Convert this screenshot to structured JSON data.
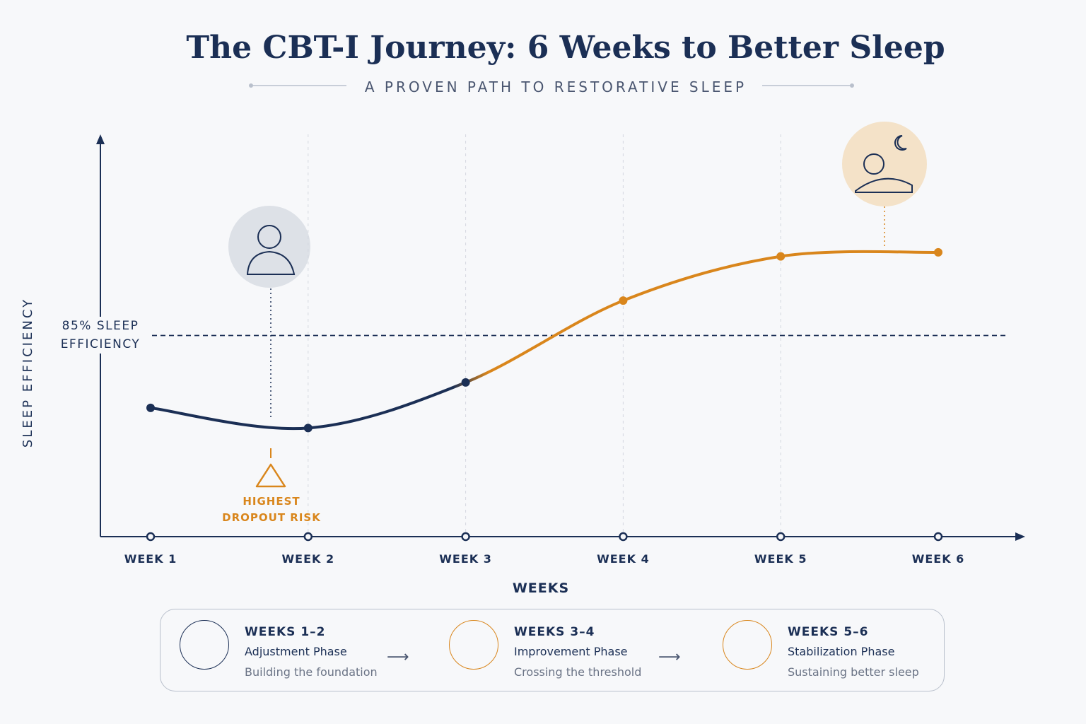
{
  "chart_data": {
    "type": "line",
    "title": "The CBT-I Journey: 6 Weeks to Better Sleep",
    "subtitle": "A PROVEN PATH TO RESTORATIVE SLEEP",
    "x_label": "WEEKS",
    "y_label": "SLEEP EFFICIENCY",
    "categories": [
      "WEEK 1",
      "WEEK 2",
      "WEEK 3",
      "WEEK 4",
      "WEEK 5",
      "WEEK 6"
    ],
    "series": [
      {
        "color": "#1b2f55",
        "values": [
          79.6,
          78.1,
          81.5,
          87.6,
          90.9,
          91.2
        ]
      }
    ],
    "accent_color": "#d9861c",
    "ylim": [
      70,
      100
    ],
    "threshold": {
      "value": 85,
      "label": "85% SLEEP EFFICIENCY"
    },
    "annotation": "HIGHEST DROPOUT RISK"
  },
  "phases": [
    {
      "weeks": "WEEKS 1–2",
      "name": "Adjustment Phase",
      "desc": "Building the foundation"
    },
    {
      "weeks": "WEEKS 3–4",
      "name": "Improvement Phase",
      "desc": "Crossing the threshold"
    },
    {
      "weeks": "WEEKS 5–6",
      "name": "Stabilization Phase",
      "desc": "Sustaining better sleep"
    }
  ]
}
